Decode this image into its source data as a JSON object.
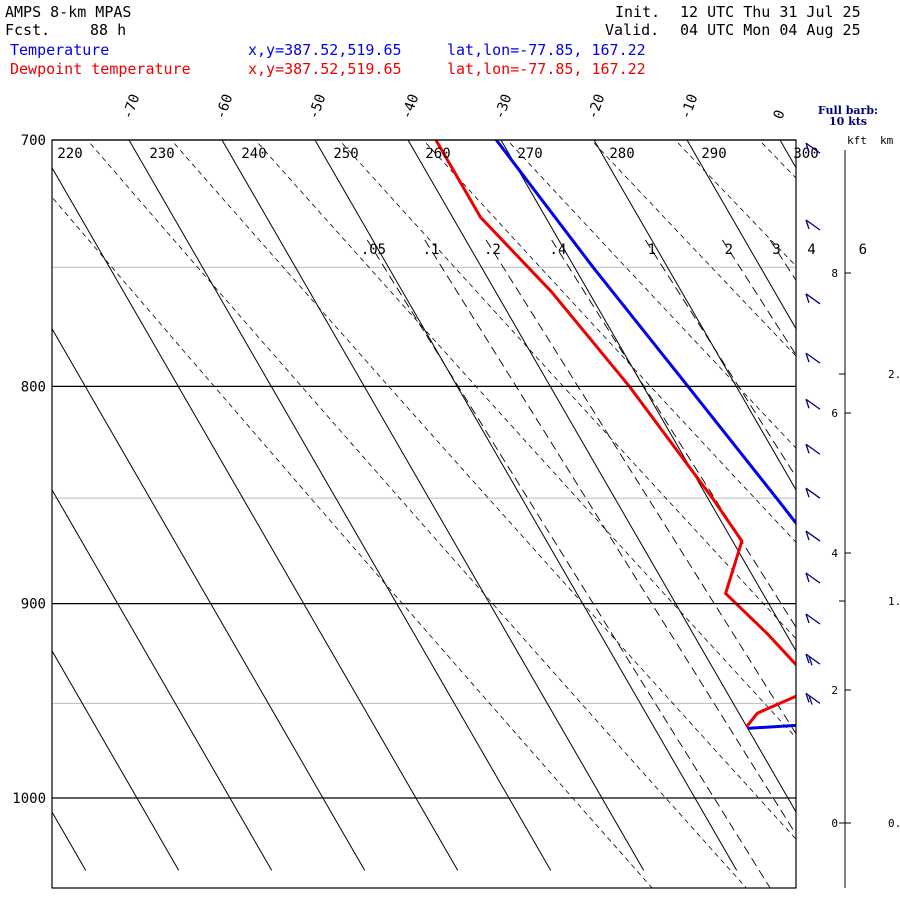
{
  "header": {
    "model": "AMPS 8-km MPAS",
    "fcst_label": "Fcst.",
    "fcst_value": "88 h",
    "init_label": "Init.",
    "init_value": "12 UTC Thu 31 Jul 25",
    "valid_label": "Valid.",
    "valid_value": "04 UTC Mon 04 Aug 25"
  },
  "legend": [
    {
      "name": "Temperature",
      "xy": "x,y=387.52,519.65",
      "latlon": "lat,lon=-77.85, 167.22",
      "color": "#0000ee"
    },
    {
      "name": "Dewpoint temperature",
      "xy": "x,y=387.52,519.65",
      "latlon": "lat,lon=-77.85, 167.22",
      "color": "#ee0000"
    }
  ],
  "barb_header": {
    "line1": "Full barb:",
    "line2": "10 kts"
  },
  "height_axis": {
    "kft_label": "kft",
    "km_label": "km"
  },
  "chart_data": {
    "type": "line",
    "diagram": "skew-T log-P",
    "pressure_range_hpa": [
      700,
      1040
    ],
    "isobars_hpa": [
      700,
      800,
      900,
      1000
    ],
    "isobar_labels": [
      "700",
      "800",
      "900",
      "1000"
    ],
    "temperature_ticks_c": [
      -70,
      -60,
      -50,
      -40,
      -30,
      -20,
      -10,
      0
    ],
    "temperature_tick_labels": [
      "-70",
      "-60",
      "-50",
      "-40",
      "-30",
      "-20",
      "-10",
      "0"
    ],
    "isentrope_labels_k": [
      "220",
      "230",
      "240",
      "250",
      "260",
      "270",
      "280",
      "290",
      "300"
    ],
    "mixing_ratio_labels": [
      ".05",
      ".1",
      ".2",
      ".4",
      "1",
      "2",
      "3",
      "4",
      "6"
    ],
    "kft_ticks": [
      "8",
      "6",
      "4",
      "2",
      "0"
    ],
    "km_ticks": [
      "2.",
      "1.",
      "0."
    ],
    "series": [
      {
        "name": "Temperature",
        "color": "#0000ee",
        "points": [
          {
            "p": 700,
            "t": -30.5
          },
          {
            "p": 750,
            "t": -28.0
          },
          {
            "p": 800,
            "t": -25.2
          },
          {
            "p": 850,
            "t": -22.6
          },
          {
            "p": 880,
            "t": -21.2
          },
          {
            "p": 895,
            "t": -21.3
          },
          {
            "p": 910,
            "t": -24.5
          },
          {
            "p": 920,
            "t": -25.5
          },
          {
            "p": 940,
            "t": -24.5
          },
          {
            "p": 950,
            "t": -24.0
          },
          {
            "p": 960,
            "t": -30.0
          },
          {
            "p": 963,
            "t": -40.0
          }
        ]
      },
      {
        "name": "Dewpoint temperature",
        "color": "#ee0000",
        "points": [
          {
            "p": 700,
            "t": -37.0
          },
          {
            "p": 730,
            "t": -37.0
          },
          {
            "p": 760,
            "t": -34.0
          },
          {
            "p": 800,
            "t": -31.5
          },
          {
            "p": 850,
            "t": -29.5
          },
          {
            "p": 870,
            "t": -29.0
          },
          {
            "p": 895,
            "t": -34.0
          },
          {
            "p": 915,
            "t": -32.0
          },
          {
            "p": 935,
            "t": -30.5
          },
          {
            "p": 945,
            "t": -32.0
          },
          {
            "p": 955,
            "t": -38.0
          },
          {
            "p": 962,
            "t": -40.0
          }
        ]
      }
    ],
    "wind_barbs": [
      {
        "p": 705,
        "speed_kt": 10
      },
      {
        "p": 735,
        "speed_kt": 10
      },
      {
        "p": 765,
        "speed_kt": 10
      },
      {
        "p": 790,
        "speed_kt": 10
      },
      {
        "p": 810,
        "speed_kt": 10
      },
      {
        "p": 830,
        "speed_kt": 10
      },
      {
        "p": 850,
        "speed_kt": 10
      },
      {
        "p": 870,
        "speed_kt": 10
      },
      {
        "p": 890,
        "speed_kt": 10
      },
      {
        "p": 910,
        "speed_kt": 10
      },
      {
        "p": 930,
        "speed_kt": 20
      },
      {
        "p": 950,
        "speed_kt": 20
      }
    ]
  }
}
